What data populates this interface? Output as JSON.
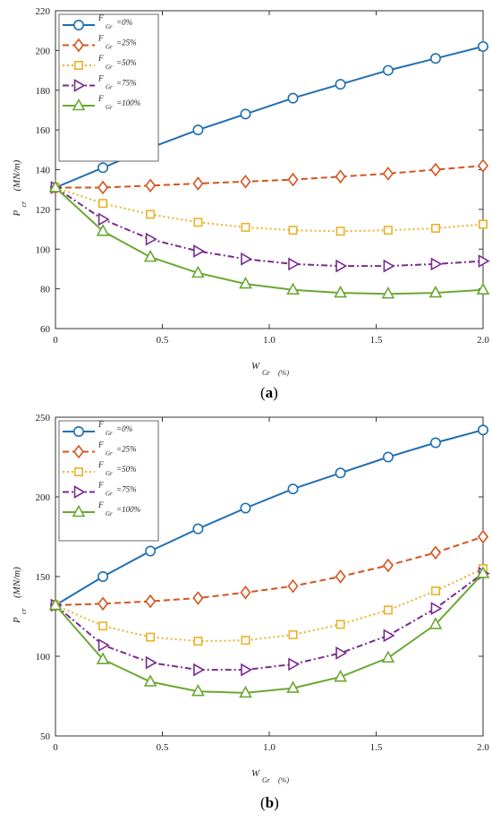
{
  "chart_data": [
    {
      "type": "line",
      "caption": {
        "open": "(",
        "letter": "a",
        "close": ")"
      },
      "xlabel": {
        "main": "W",
        "sub": "Gr",
        "unit": "(%)"
      },
      "ylabel": {
        "main": "P",
        "sub": "cr",
        "unit": "(MN/m)"
      },
      "xlim": [
        0,
        2.0
      ],
      "ylim": [
        60,
        220
      ],
      "xticks": [
        "0",
        "0.5",
        "1.0",
        "1.5",
        "2.0"
      ],
      "xtick_values": [
        0,
        0.5,
        1.0,
        1.5,
        2.0
      ],
      "yticks": [
        "60",
        "80",
        "100",
        "120",
        "140",
        "160",
        "180",
        "200",
        "220"
      ],
      "ytick_values": [
        60,
        80,
        100,
        120,
        140,
        160,
        180,
        200,
        220
      ],
      "legend_position": "top-left",
      "x": [
        0,
        0.222,
        0.444,
        0.667,
        0.889,
        1.111,
        1.333,
        1.556,
        1.778,
        2.0
      ],
      "series": [
        {
          "name": "F",
          "sub": "Gr",
          "val": "=0%",
          "color": "#1f6fb2",
          "marker": "circle",
          "dash": "solid",
          "values": [
            131,
            141,
            151,
            160,
            168,
            176,
            183,
            190,
            196,
            202
          ]
        },
        {
          "name": "F",
          "sub": "Gr",
          "val": "=25%",
          "color": "#d4541e",
          "marker": "diamond",
          "dash": "dash",
          "values": [
            131,
            131,
            132,
            133,
            134,
            135,
            136.5,
            138,
            140,
            142
          ]
        },
        {
          "name": "F",
          "sub": "Gr",
          "val": "=50%",
          "color": "#ebb12a",
          "marker": "square",
          "dash": "dot",
          "values": [
            131,
            123,
            117.5,
            113.5,
            111,
            109.5,
            109,
            109.5,
            110.5,
            112.5
          ]
        },
        {
          "name": "F",
          "sub": "Gr",
          "val": "=75%",
          "color": "#7a2c8e",
          "marker": "triangle-right",
          "dash": "dashdot",
          "values": [
            131,
            115,
            105,
            99,
            95,
            92.5,
            91.5,
            91.5,
            92.5,
            94
          ]
        },
        {
          "name": "F",
          "sub": "Gr",
          "val": "=100%",
          "color": "#6aa832",
          "marker": "triangle-up",
          "dash": "solid",
          "values": [
            131,
            109,
            96,
            88,
            82.5,
            79.5,
            78,
            77.5,
            78,
            79.5
          ]
        }
      ]
    },
    {
      "type": "line",
      "caption": {
        "open": "(",
        "letter": "b",
        "close": ")"
      },
      "xlabel": {
        "main": "W",
        "sub": "Gr",
        "unit": "(%)"
      },
      "ylabel": {
        "main": "P",
        "sub": "cr",
        "unit": "(MN/m)"
      },
      "xlim": [
        0,
        2.0
      ],
      "ylim": [
        50,
        250
      ],
      "xticks": [
        "0",
        "0.5",
        "1.0",
        "1.5",
        "2.0"
      ],
      "xtick_values": [
        0,
        0.5,
        1.0,
        1.5,
        2.0
      ],
      "yticks": [
        "50",
        "100",
        "150",
        "200",
        "250"
      ],
      "ytick_values": [
        50,
        100,
        150,
        200,
        250
      ],
      "legend_position": "top-left",
      "x": [
        0,
        0.222,
        0.444,
        0.667,
        0.889,
        1.111,
        1.333,
        1.556,
        1.778,
        2.0
      ],
      "series": [
        {
          "name": "F",
          "sub": "Gr",
          "val": "=0%",
          "color": "#1f6fb2",
          "marker": "circle",
          "dash": "solid",
          "values": [
            132,
            150,
            166,
            180,
            193,
            205,
            215,
            225,
            234,
            242
          ]
        },
        {
          "name": "F",
          "sub": "Gr",
          "val": "=25%",
          "color": "#d4541e",
          "marker": "diamond",
          "dash": "dash",
          "values": [
            132,
            133,
            134.5,
            136.5,
            140,
            144,
            150,
            157,
            165,
            175
          ]
        },
        {
          "name": "F",
          "sub": "Gr",
          "val": "=50%",
          "color": "#ebb12a",
          "marker": "square",
          "dash": "dot",
          "values": [
            132,
            119,
            112,
            109.5,
            110,
            113.5,
            120,
            129,
            141,
            155
          ]
        },
        {
          "name": "F",
          "sub": "Gr",
          "val": "=75%",
          "color": "#7a2c8e",
          "marker": "triangle-right",
          "dash": "dashdot",
          "values": [
            132,
            107,
            96,
            91.5,
            91.5,
            95,
            102,
            113,
            130,
            152
          ]
        },
        {
          "name": "F",
          "sub": "Gr",
          "val": "=100%",
          "color": "#6aa832",
          "marker": "triangle-up",
          "dash": "solid",
          "values": [
            132,
            98,
            84,
            78,
            77,
            80,
            87,
            99,
            120,
            152
          ]
        }
      ]
    }
  ]
}
